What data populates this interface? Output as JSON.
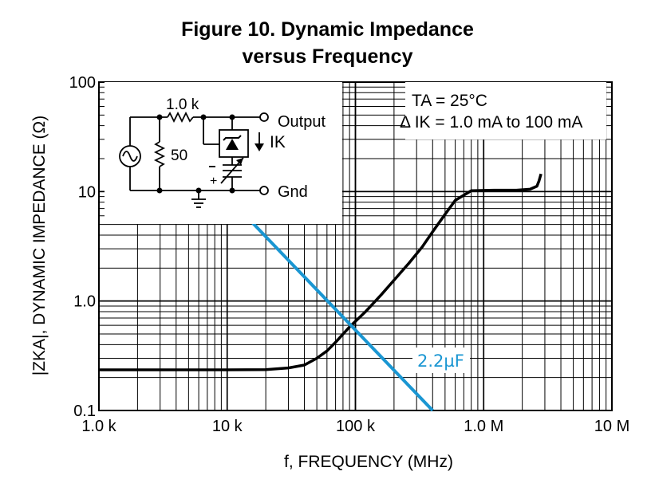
{
  "title_line1": "Figure 10. Dynamic Impedance",
  "title_line2": "versus Frequency",
  "chart_data": {
    "type": "line",
    "xlabel": "f, FREQUENCY (MHz)",
    "ylabel": "|ZKA|, DYNAMIC IMPEDANCE (Ω)",
    "x_scale": "log",
    "y_scale": "log",
    "xlim": [
      1000,
      10000000
    ],
    "ylim": [
      0.1,
      100
    ],
    "grid": true,
    "x_ticks": [
      {
        "value": 1000,
        "label": "1.0 k"
      },
      {
        "value": 10000,
        "label": "10 k"
      },
      {
        "value": 100000,
        "label": "100 k"
      },
      {
        "value": 1000000,
        "label": "1.0 M"
      },
      {
        "value": 10000000,
        "label": "10 M"
      }
    ],
    "y_ticks": [
      {
        "value": 100,
        "label": "100"
      },
      {
        "value": 10,
        "label": "10"
      },
      {
        "value": 1,
        "label": "1.0"
      },
      {
        "value": 0.1,
        "label": "0.1"
      }
    ],
    "series": [
      {
        "color": "#000000",
        "x": [
          1000,
          3000,
          10000,
          20000,
          30000,
          40000,
          50000,
          60000,
          70000,
          90000,
          120000,
          160000,
          200000,
          260000,
          330000,
          400000,
          500000,
          600000,
          800000,
          1200000,
          1800000,
          2300000,
          2600000,
          2700000,
          2800000
        ],
        "y": [
          0.235,
          0.235,
          0.235,
          0.236,
          0.245,
          0.26,
          0.3,
          0.35,
          0.42,
          0.58,
          0.8,
          1.15,
          1.55,
          2.2,
          3.1,
          4.3,
          6.2,
          8.3,
          10.2,
          10.3,
          10.3,
          10.5,
          11.2,
          12.5,
          14.5
        ]
      },
      {
        "name": "2.2µF",
        "color": "#1a96d2",
        "x": [
          15000,
          400000
        ],
        "y": [
          5.5,
          0.1
        ]
      }
    ],
    "annotations": {
      "conditions": {
        "ta": "TA = 25°C",
        "delta_ik": "Δ IK = 1.0 mA to 100 mA"
      },
      "circuit": {
        "resistor_top": "1.0 k",
        "resistor_left": "50",
        "output_label": "Output",
        "current_label": "IK",
        "gnd_label": "Gnd",
        "plus": "+",
        "minus": "–"
      }
    }
  }
}
